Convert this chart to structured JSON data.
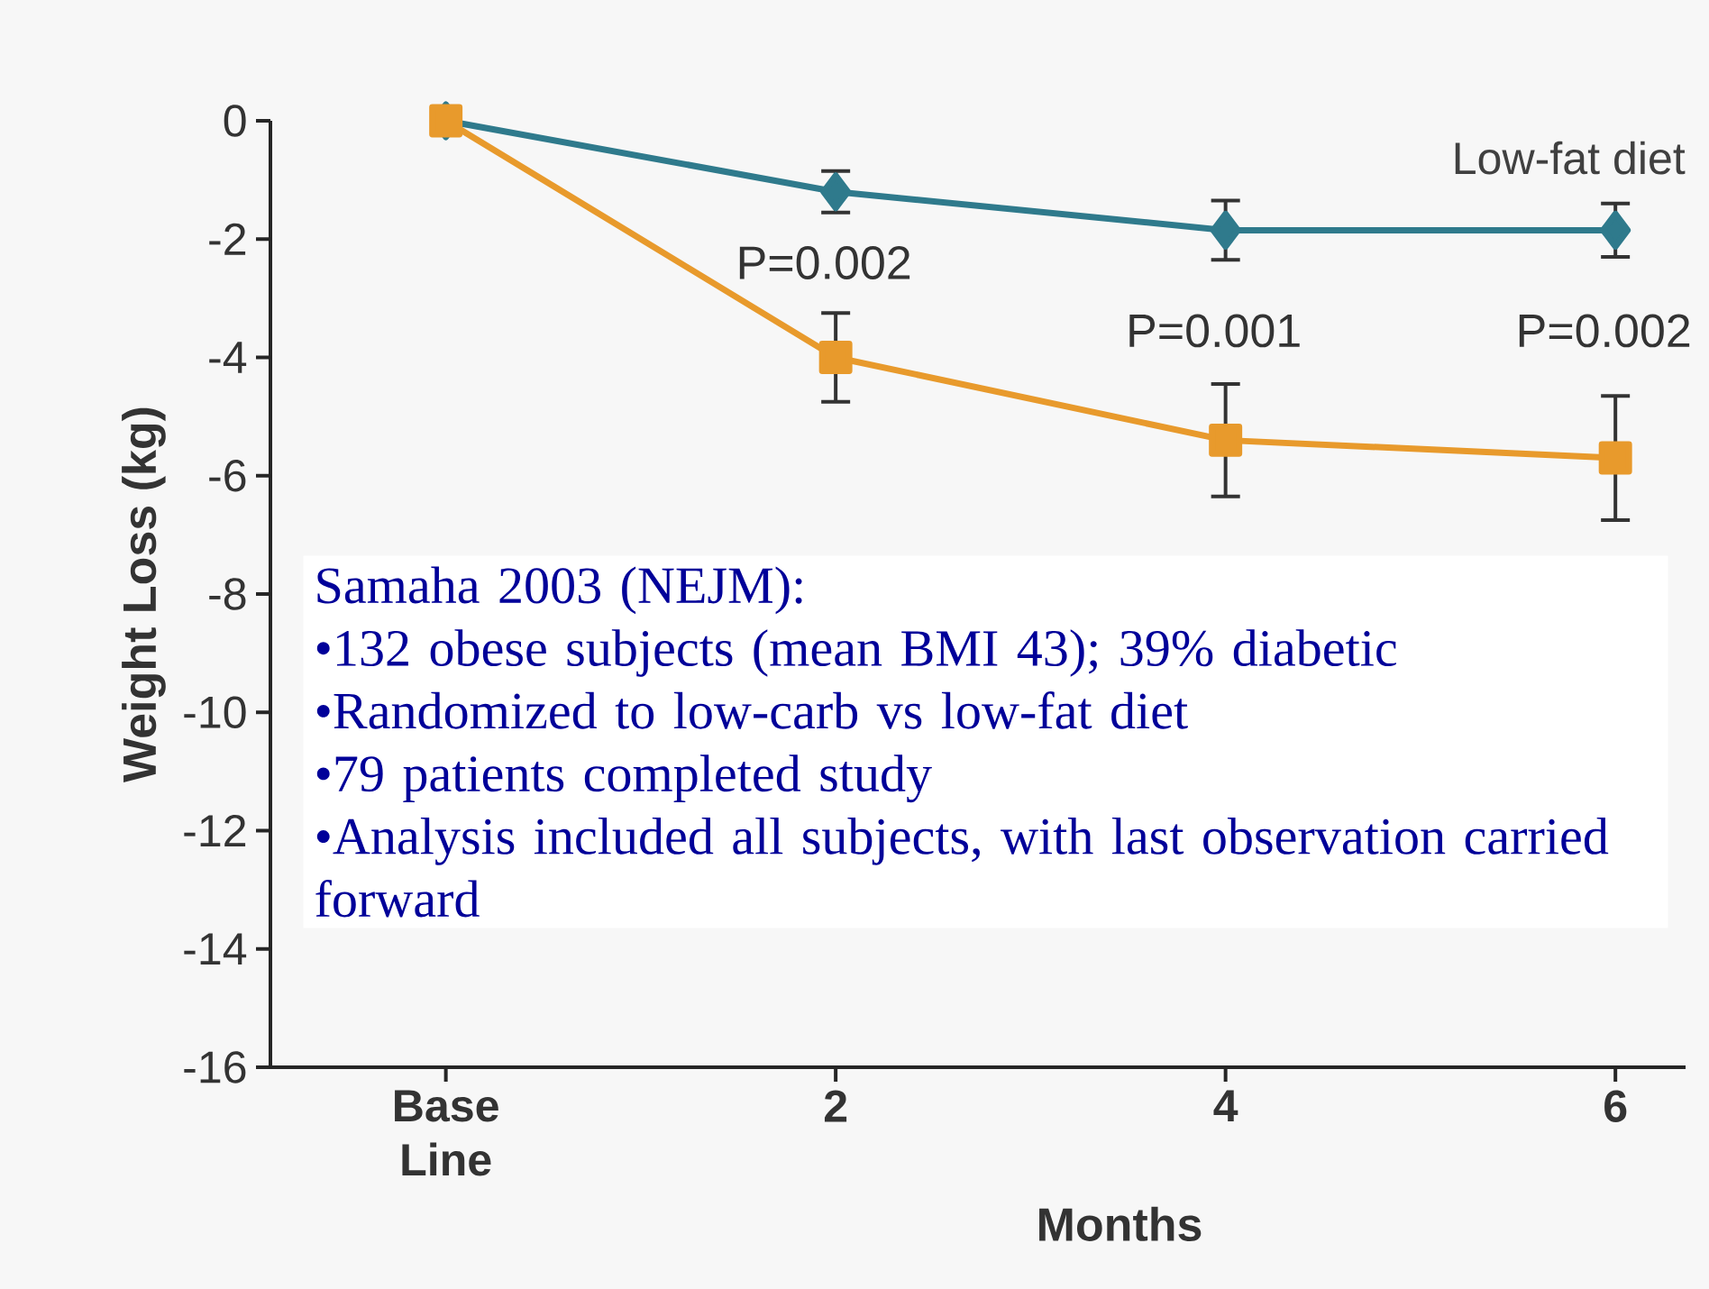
{
  "chart_data": {
    "type": "line",
    "ylabel": "Weight Loss (kg)",
    "xlabel": "Months",
    "categories": [
      "Base Line",
      "2",
      "4",
      "6"
    ],
    "series": [
      {
        "name": "Low-fat diet",
        "color": "#2f7a8c",
        "marker": "diamond",
        "values": [
          0,
          -1.2,
          -1.85,
          -1.85
        ],
        "errors": [
          null,
          0.35,
          0.5,
          0.45
        ]
      },
      {
        "color": "#e89a2c",
        "marker": "square",
        "values": [
          0,
          -4.0,
          -5.4,
          -5.7
        ],
        "errors": [
          null,
          0.75,
          0.95,
          1.05
        ]
      }
    ],
    "ylim": [
      -16,
      0
    ],
    "yticks": [
      -16,
      -14,
      -12,
      -10,
      -8,
      -6,
      -4,
      -2,
      0
    ],
    "grid": false,
    "line_style": "solid",
    "annotations": [
      "P=0.002",
      "P=0.001",
      "P=0.002",
      "Samaha 2003 (NEJM):",
      "•132 obese subjects (mean BMI 43); 39% diabetic",
      "•Randomized to low-carb vs low-fat diet",
      "•79 patients completed study",
      "•Analysis included all subjects, with last observation carried forward"
    ]
  }
}
